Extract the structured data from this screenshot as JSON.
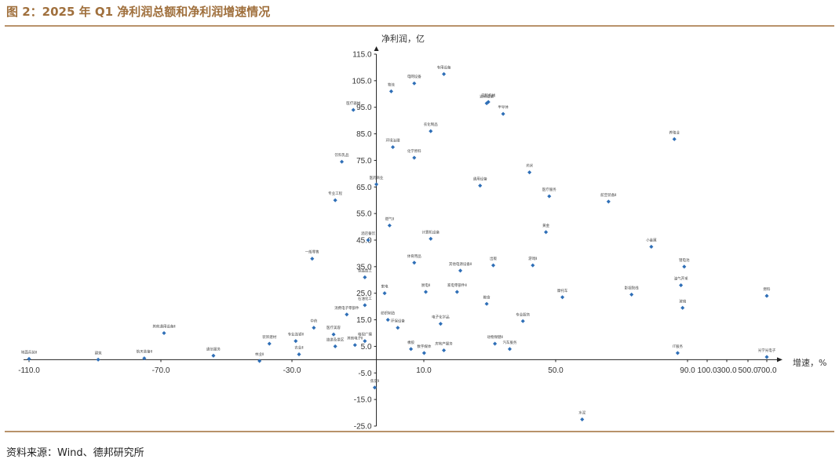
{
  "figure": {
    "title": "图 2：2025 年 Q1 净利润总额和净利润增速情况",
    "source": "资料来源：Wind、德邦研究所"
  },
  "chart_data": {
    "type": "scatter",
    "title": "",
    "xlabel": "增速，%",
    "ylabel": "净利润，亿",
    "x_ticks": [
      "-110.0",
      "-70.0",
      "-30.0",
      "10.0",
      "50.0",
      "90.0",
      "100.0",
      "300.0",
      "500.0",
      "700.0"
    ],
    "y_ticks": [
      "115.0",
      "105.0",
      "95.0",
      "85.0",
      "75.0",
      "65.0",
      "55.0",
      "45.0",
      "35.0",
      "25.0",
      "15.0",
      "5.0",
      "-5.0",
      "-15.0",
      "-25.0"
    ],
    "ylim": [
      -25,
      115
    ],
    "xlim": [
      -110,
      90
    ],
    "x_axis_note": "x axis compressed above 90 (ticks 100/300/500/700)",
    "color": "#2f6fb7",
    "points": [
      {
        "label": "专用设备",
        "x": 16,
        "y": 107.5
      },
      {
        "label": "电网设备",
        "x": 7,
        "y": 104
      },
      {
        "label": "物流",
        "x": 0,
        "y": 101
      },
      {
        "label": "工程机械",
        "x": 29.5,
        "y": 97
      },
      {
        "label": "通用设备",
        "x": 29,
        "y": 96.5
      },
      {
        "label": "医疗器械",
        "x": -11.5,
        "y": 94
      },
      {
        "label": "半导体",
        "x": 34,
        "y": 92.5
      },
      {
        "label": "农化制品",
        "x": 12,
        "y": 86
      },
      {
        "label": "环境治理",
        "x": 0.5,
        "y": 80
      },
      {
        "label": "养殖业",
        "x": 86,
        "y": 83
      },
      {
        "label": "饮料乳品",
        "x": -15,
        "y": 74.5
      },
      {
        "label": "化学原料",
        "x": 7,
        "y": 76
      },
      {
        "label": "光伏",
        "x": 42,
        "y": 70.5
      },
      {
        "label": "通用设备",
        "x": 27,
        "y": 65.5
      },
      {
        "label": "医药商业",
        "x": -4.5,
        "y": 66
      },
      {
        "label": "专业工程",
        "x": -17,
        "y": 60
      },
      {
        "label": "医疗服务",
        "x": 48,
        "y": 61.5
      },
      {
        "label": "航空装备Ⅱ",
        "x": 66,
        "y": 59.5
      },
      {
        "label": "燃气Ⅱ",
        "x": -0.5,
        "y": 50.5
      },
      {
        "label": "黄金",
        "x": 47,
        "y": 48
      },
      {
        "label": "计算机设备",
        "x": 12,
        "y": 45.5
      },
      {
        "label": "酒店餐饮",
        "x": -7,
        "y": 45
      },
      {
        "label": "小金属",
        "x": 79,
        "y": 42.5
      },
      {
        "label": "体育用品",
        "x": 7,
        "y": 36.5
      },
      {
        "label": "一般零售",
        "x": -24,
        "y": 38
      },
      {
        "label": "其他电源设备Ⅱ",
        "x": 21,
        "y": 33.5
      },
      {
        "label": "出版",
        "x": 31,
        "y": 35.5
      },
      {
        "label": "游戏Ⅱ",
        "x": 43,
        "y": 35.5
      },
      {
        "label": "食品加工",
        "x": -8,
        "y": 31
      },
      {
        "label": "家电",
        "x": -2,
        "y": 25
      },
      {
        "label": "厨电Ⅱ",
        "x": 10.5,
        "y": 25.5
      },
      {
        "label": "家电零部件Ⅱ",
        "x": 20,
        "y": 25.5
      },
      {
        "label": "摩托车",
        "x": 52,
        "y": 23.5
      },
      {
        "label": "影视院线",
        "x": 73,
        "y": 24.5
      },
      {
        "label": "粮食",
        "x": 29,
        "y": 21
      },
      {
        "label": "石油化工",
        "x": -8,
        "y": 20.5
      },
      {
        "label": "专业服务",
        "x": 40,
        "y": 14.5
      },
      {
        "label": "纺织制造",
        "x": -1,
        "y": 15
      },
      {
        "label": "电子化学品",
        "x": 15,
        "y": 13.5
      },
      {
        "label": "环保设备",
        "x": 2,
        "y": 12
      },
      {
        "label": "消费电子零部件",
        "x": -13.5,
        "y": 17
      },
      {
        "label": "其他通用设备Ⅱ",
        "x": -69,
        "y": 10
      },
      {
        "label": "中药",
        "x": -23.5,
        "y": 12
      },
      {
        "label": "医疗美容",
        "x": -17.5,
        "y": 9.5
      },
      {
        "label": "装饰建材",
        "x": -37,
        "y": 6
      },
      {
        "label": "专业连锁Ⅱ",
        "x": -29,
        "y": 7
      },
      {
        "label": "旅游及景区",
        "x": -17,
        "y": 5
      },
      {
        "label": "其他电子Ⅱ",
        "x": -11,
        "y": 5.5
      },
      {
        "label": "电视广播",
        "x": -8,
        "y": 7
      },
      {
        "label": "地面兵装Ⅱ",
        "x": -110,
        "y": 0.3
      },
      {
        "label": "建筑",
        "x": -89,
        "y": 0
      },
      {
        "label": "航天装备Ⅱ",
        "x": -75,
        "y": 0.5
      },
      {
        "label": "通信服务",
        "x": -54,
        "y": 1.5
      },
      {
        "label": "林业Ⅱ",
        "x": -40,
        "y": -0.5
      },
      {
        "label": "农业Ⅱ",
        "x": -28,
        "y": 2
      },
      {
        "label": "橡胶",
        "x": 6,
        "y": 4
      },
      {
        "label": "数字媒体",
        "x": 10,
        "y": 2.5
      },
      {
        "label": "房地产服务",
        "x": 16,
        "y": 3.5
      },
      {
        "label": "动物保健Ⅱ",
        "x": 31.5,
        "y": 6
      },
      {
        "label": "汽车服务",
        "x": 36,
        "y": 4
      },
      {
        "label": "水泥",
        "x": 58,
        "y": -22.5
      },
      {
        "label": "焦炭Ⅱ",
        "x": -5,
        "y": -10.5
      },
      {
        "label": "锂电池",
        "x": 89,
        "y": 35
      },
      {
        "label": "油气开采",
        "x": 88,
        "y": 28
      },
      {
        "label": "玻璃",
        "x": 88.5,
        "y": 19.5
      },
      {
        "label": "燃料",
        "x": 100,
        "y": 24
      },
      {
        "label": "IT服务",
        "x": 87,
        "y": 2.5
      },
      {
        "label": "光学光电子",
        "x": 92,
        "y": 1
      }
    ]
  }
}
